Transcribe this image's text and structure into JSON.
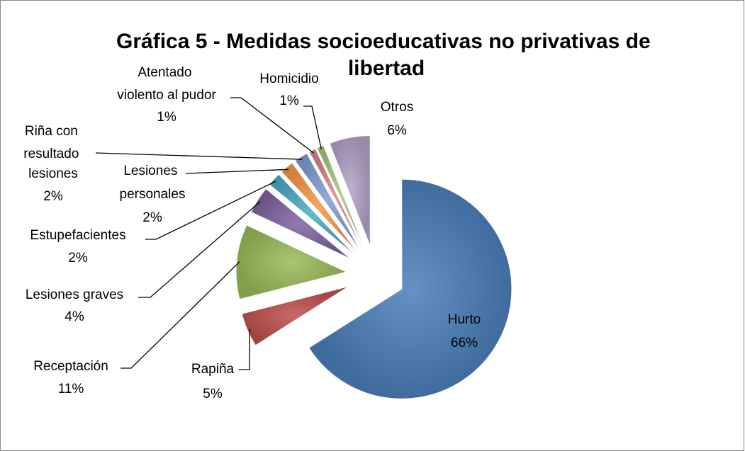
{
  "chart_data": {
    "type": "pie",
    "title": "Gráfica 5 - Medidas socioeducativas no privativas de libertad",
    "categories": [
      "Hurto",
      "Rapiña",
      "Receptación",
      "Lesiones graves",
      "Estupefacientes",
      "Lesiones personales",
      "Riña con resultado lesiones",
      "Atentado violento al pudor",
      "Homicidio",
      "Otros"
    ],
    "values": [
      66,
      5,
      11,
      4,
      2,
      2,
      2,
      1,
      1,
      6
    ],
    "value_labels": [
      "66%",
      "5%",
      "11%",
      "4%",
      "2%",
      "2%",
      "2%",
      "1%",
      "1%",
      "6%"
    ],
    "colors": [
      "#4a7ebb",
      "#c0504d",
      "#9bbb59",
      "#8064a2",
      "#4bacc6",
      "#f79646",
      "#7f9fd0",
      "#d9868a",
      "#a9c97a",
      "#b3a2c7"
    ]
  }
}
